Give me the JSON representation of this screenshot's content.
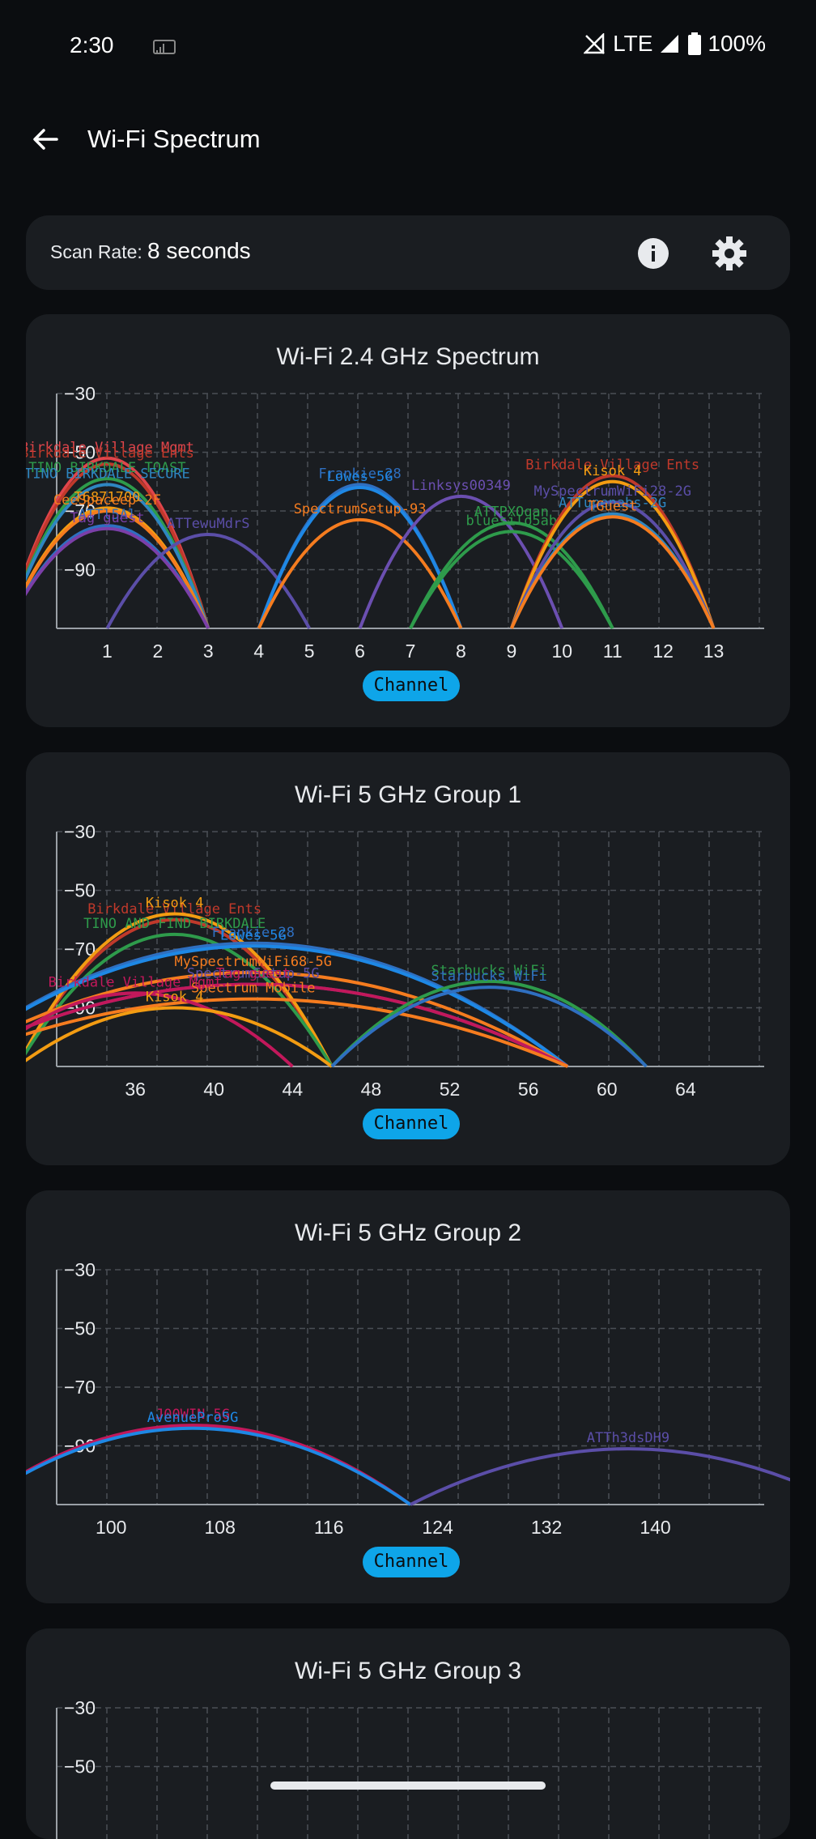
{
  "status": {
    "time": "2:30",
    "network": "LTE",
    "battery": "100%"
  },
  "app": {
    "title": "Wi-Fi Spectrum"
  },
  "scan": {
    "label": "Scan Rate:",
    "value": "8 seconds"
  },
  "icons": {
    "back": "arrow-back-icon",
    "cast": "cast-icon",
    "signal": "signal-icon",
    "battery": "battery-icon",
    "info": "info-icon",
    "settings": "gear-icon"
  },
  "colors": {
    "accent": "#0ea5e9",
    "card": "#1a1d21",
    "background": "#0b0d10"
  },
  "channel_button": "Channel",
  "chart_data": [
    {
      "type": "area",
      "title": "Wi-Fi 2.4 GHz Spectrum",
      "xlabel": "Channel",
      "ylabel": "",
      "ylim": [
        -110,
        -30
      ],
      "xlim": [
        0,
        14
      ],
      "grid": true,
      "yticks": [
        -30,
        -50,
        -70,
        -90
      ],
      "xticks": [
        1,
        2,
        3,
        4,
        5,
        6,
        7,
        8,
        9,
        10,
        11,
        12,
        13
      ],
      "series": [
        {
          "name": "Birkdale Village Mgmt",
          "channel": 1,
          "width": 2,
          "peak": -52,
          "color": "#e0454b"
        },
        {
          "name": "Birkdale Village Ents",
          "channel": 1,
          "width": 2,
          "peak": -54,
          "color": "#c0392b"
        },
        {
          "name": "TINO BIRKDALE TOAST",
          "channel": 1,
          "width": 2,
          "peak": -59,
          "color": "#2e9b4b"
        },
        {
          "name": "TINO BIRKDALE SECURE",
          "channel": 1,
          "width": 2,
          "peak": -61,
          "color": "#2e86c1"
        },
        {
          "name": "T6871700",
          "channel": 1,
          "width": 2,
          "peak": -69,
          "color": "#f39c12"
        },
        {
          "name": "CeeSpaceep-2F",
          "channel": 1,
          "width": 2,
          "peak": -70,
          "color": "#f57c1f"
        },
        {
          "name": "ATTl5Al",
          "channel": 1,
          "width": 2,
          "peak": -75,
          "color": "#2f6fc0"
        },
        {
          "name": "Tag guest",
          "channel": 1,
          "width": 2,
          "peak": -76,
          "color": "#7b3fa8"
        },
        {
          "name": "ATTewuMdrS",
          "channel": 3,
          "width": 2,
          "peak": -78,
          "color": "#5b4ea8"
        },
        {
          "name": "Frankie 28",
          "channel": 6,
          "width": 2,
          "peak": -61,
          "color": "#2f6fc0"
        },
        {
          "name": "Lowes-5G",
          "channel": 6,
          "width": 2,
          "peak": -62,
          "color": "#1e88e5"
        },
        {
          "name": "SpectrumSetup-93",
          "channel": 6,
          "width": 2,
          "peak": -73,
          "color": "#f57c1f"
        },
        {
          "name": "Linksys00349",
          "channel": 8,
          "width": 2,
          "peak": -65,
          "color": "#6b4fb0"
        },
        {
          "name": "ATTPXOqan",
          "channel": 9,
          "width": 2,
          "peak": -74,
          "color": "#2e9b4b"
        },
        {
          "name": "bluesilo5ab",
          "channel": 9,
          "width": 2,
          "peak": -77,
          "color": "#2e9b4b"
        },
        {
          "name": "Birkdale Village Ents",
          "channel": 11,
          "width": 2,
          "peak": -58,
          "color": "#c0392b"
        },
        {
          "name": "Kisok 4",
          "channel": 11,
          "width": 2,
          "peak": -60,
          "color": "#f39c12"
        },
        {
          "name": "MySpectrumWiFi28-2G",
          "channel": 11,
          "width": 2,
          "peak": -67,
          "color": "#5b4ea8"
        },
        {
          "name": "ATTupenabs-2G",
          "channel": 11,
          "width": 2,
          "peak": -71,
          "color": "#2e86c1"
        },
        {
          "name": "TGuest",
          "channel": 11,
          "width": 2,
          "peak": -72,
          "color": "#f57c1f"
        }
      ]
    },
    {
      "type": "area",
      "title": "Wi-Fi 5 GHz Group 1",
      "xlabel": "Channel",
      "ylabel": "",
      "ylim": [
        -110,
        -30
      ],
      "xlim": [
        32,
        68
      ],
      "grid": true,
      "yticks": [
        -30,
        -50,
        -70,
        -90
      ],
      "xticks": [
        36,
        40,
        44,
        48,
        52,
        56,
        60,
        64
      ],
      "series": [
        {
          "name": "Birkdale Village Ents",
          "channel": 38,
          "width": 8,
          "peak": -60,
          "color": "#c0392b"
        },
        {
          "name": "Kisok 4",
          "channel": 38,
          "width": 8,
          "peak": -58,
          "color": "#f39c12"
        },
        {
          "name": "TINO AND FIND BIRKDALE",
          "channel": 38,
          "width": 8,
          "peak": -65,
          "color": "#2e9b4b"
        },
        {
          "name": "Frankie 28",
          "channel": 42,
          "width": 16,
          "peak": -68,
          "color": "#2f6fc0"
        },
        {
          "name": "Lowes-5G",
          "channel": 42,
          "width": 16,
          "peak": -69,
          "color": "#1e88e5"
        },
        {
          "name": "MySpectrumWiFi68-5G",
          "channel": 42,
          "width": 16,
          "peak": -78,
          "color": "#f57c1f"
        },
        {
          "name": "SpectrumSetup-5G",
          "channel": 42,
          "width": 16,
          "peak": -82,
          "color": "#5b4ea8"
        },
        {
          "name": "Tag guest",
          "channel": 42,
          "width": 16,
          "peak": -82,
          "color": "#c2185b"
        },
        {
          "name": "Spectrum Mobile",
          "channel": 42,
          "width": 16,
          "peak": -87,
          "color": "#f57c1f"
        },
        {
          "name": "Birkdale Village Mgmt",
          "channel": 36,
          "width": 8,
          "peak": -85,
          "color": "#c2185b"
        },
        {
          "name": "Kisok 4",
          "channel": 38,
          "width": 8,
          "peak": -90,
          "color": "#f39c12"
        },
        {
          "name": "Starbucks WiFi",
          "channel": 54,
          "width": 8,
          "peak": -81,
          "color": "#2e9b4b"
        },
        {
          "name": "Starbucks WiFi",
          "channel": 54,
          "width": 8,
          "peak": -83,
          "color": "#2f6fc0"
        }
      ]
    },
    {
      "type": "area",
      "title": "Wi-Fi 5 GHz Group 2",
      "xlabel": "Channel",
      "ylabel": "",
      "ylim": [
        -110,
        -30
      ],
      "xlim": [
        96,
        148
      ],
      "grid": true,
      "yticks": [
        -30,
        -50,
        -70,
        -90
      ],
      "xticks": [
        100,
        108,
        116,
        124,
        132,
        140
      ],
      "series": [
        {
          "name": "J00WIN-5G",
          "channel": 106,
          "width": 16,
          "peak": -83,
          "color": "#c2185b"
        },
        {
          "name": "AvenuePro5G",
          "channel": 106,
          "width": 16,
          "peak": -84,
          "color": "#1e88e5"
        },
        {
          "name": "ATTh3dsDH9",
          "channel": 138,
          "width": 16,
          "peak": -91,
          "color": "#5b4ea8"
        }
      ]
    },
    {
      "type": "area",
      "title": "Wi-Fi 5 GHz Group 3",
      "xlabel": "",
      "ylabel": "",
      "ylim": [
        -110,
        -30
      ],
      "grid": true,
      "yticks": [
        -30,
        -50
      ],
      "series": []
    }
  ]
}
